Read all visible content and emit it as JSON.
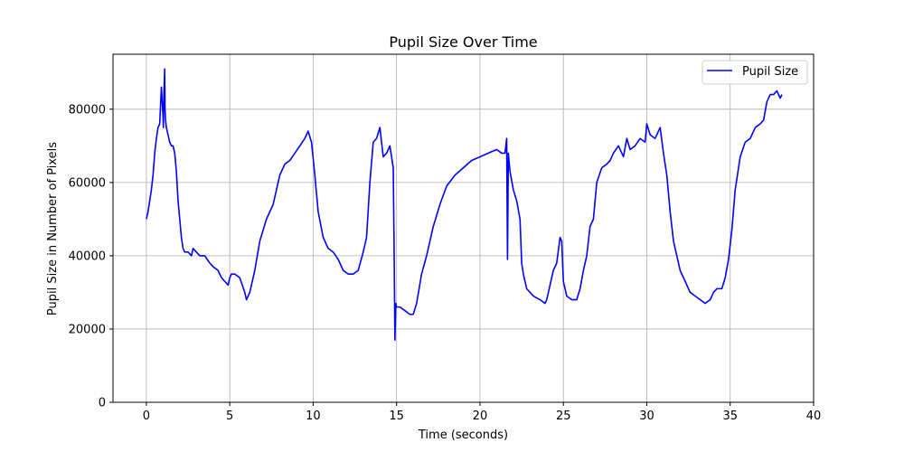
{
  "chart_data": {
    "type": "line",
    "title": "Pupil Size Over Time",
    "xlabel": "Time (seconds)",
    "ylabel": "Pupil Size in Number of Pixels",
    "xlim": [
      -2,
      40
    ],
    "ylim": [
      0,
      95000
    ],
    "xticks": [
      0,
      5,
      10,
      15,
      20,
      25,
      30,
      35,
      40
    ],
    "yticks": [
      0,
      20000,
      40000,
      60000,
      80000
    ],
    "grid": true,
    "legend": {
      "position": "top-right",
      "entries": [
        "Pupil Size"
      ]
    },
    "colors": {
      "series": "#0000ff",
      "grid": "#b0b0b0",
      "axes": "#000000"
    },
    "series": [
      {
        "name": "Pupil Size",
        "x": [
          0,
          0.1,
          0.2,
          0.3,
          0.4,
          0.5,
          0.6,
          0.7,
          0.8,
          0.9,
          1.0,
          1.02,
          1.05,
          1.1,
          1.12,
          1.15,
          1.2,
          1.3,
          1.4,
          1.5,
          1.6,
          1.7,
          1.8,
          1.9,
          2.0,
          2.1,
          2.2,
          2.3,
          2.5,
          2.7,
          2.8,
          3.0,
          3.2,
          3.5,
          3.8,
          4.0,
          4.3,
          4.5,
          4.7,
          4.9,
          5.0,
          5.1,
          5.3,
          5.6,
          5.9,
          6.0,
          6.2,
          6.5,
          6.8,
          7.2,
          7.6,
          8.0,
          8.3,
          8.6,
          8.9,
          9.2,
          9.5,
          9.7,
          9.9,
          10.1,
          10.3,
          10.6,
          10.9,
          11.2,
          11.5,
          11.8,
          12.1,
          12.4,
          12.7,
          13.0,
          13.2,
          13.4,
          13.6,
          13.8,
          14.0,
          14.2,
          14.4,
          14.6,
          14.8,
          14.85,
          14.9,
          14.95,
          15.0,
          15.2,
          15.5,
          15.8,
          16.0,
          16.2,
          16.5,
          16.8,
          17.2,
          17.6,
          18.0,
          18.5,
          19.0,
          19.5,
          20.0,
          20.5,
          21.0,
          21.3,
          21.5,
          21.6,
          21.65,
          21.7,
          21.8,
          22.0,
          22.2,
          22.4,
          22.5,
          22.6,
          22.8,
          23.2,
          23.6,
          23.9,
          24.0,
          24.2,
          24.4,
          24.6,
          24.8,
          24.9,
          25.0,
          25.2,
          25.5,
          25.8,
          26.0,
          26.2,
          26.4,
          26.5,
          26.6,
          26.8,
          27.0,
          27.3,
          27.6,
          27.8,
          28.0,
          28.3,
          28.6,
          28.8,
          29.0,
          29.3,
          29.6,
          29.9,
          30.0,
          30.2,
          30.5,
          30.8,
          31.0,
          31.2,
          31.4,
          31.6,
          31.8,
          32.0,
          32.3,
          32.6,
          32.9,
          33.2,
          33.5,
          33.8,
          34.0,
          34.2,
          34.5,
          34.7,
          34.9,
          35.1,
          35.3,
          35.6,
          35.9,
          36.2,
          36.5,
          36.8,
          37.0,
          37.2,
          37.4,
          37.6,
          37.8,
          38.0,
          38.1
        ],
        "values": [
          50000,
          52000,
          55000,
          58000,
          62000,
          68000,
          72000,
          75000,
          76000,
          86000,
          78000,
          75000,
          84000,
          91000,
          80000,
          77000,
          75000,
          73000,
          71000,
          70000,
          70000,
          68000,
          63000,
          55000,
          50000,
          45000,
          42000,
          41000,
          41000,
          40000,
          42000,
          41000,
          40000,
          40000,
          38000,
          37000,
          36000,
          34000,
          33000,
          32000,
          34000,
          35000,
          35000,
          34000,
          30000,
          28000,
          30000,
          36000,
          44000,
          50000,
          54000,
          62000,
          65000,
          66000,
          68000,
          70000,
          72000,
          74000,
          71000,
          62000,
          52000,
          45000,
          42000,
          41000,
          39000,
          36000,
          35000,
          35000,
          36000,
          41000,
          45000,
          60000,
          71000,
          72000,
          75000,
          67000,
          68000,
          70000,
          64000,
          43000,
          17000,
          27000,
          26000,
          26000,
          25000,
          24000,
          24000,
          27000,
          35000,
          40000,
          48000,
          54000,
          59000,
          62000,
          64000,
          66000,
          67000,
          68000,
          69000,
          68000,
          68000,
          72000,
          39000,
          68000,
          63000,
          58000,
          55000,
          50000,
          38000,
          35000,
          31000,
          29000,
          28000,
          27000,
          28000,
          32000,
          36000,
          38000,
          45000,
          44000,
          33000,
          29000,
          28000,
          28000,
          31000,
          36000,
          40000,
          44000,
          48000,
          50000,
          60000,
          64000,
          65000,
          66000,
          68000,
          70000,
          67000,
          72000,
          69000,
          70000,
          72000,
          71000,
          76000,
          73000,
          72000,
          75000,
          68000,
          62000,
          52000,
          44000,
          40000,
          36000,
          33000,
          30000,
          29000,
          28000,
          27000,
          28000,
          30000,
          31000,
          31000,
          34000,
          39000,
          47000,
          58000,
          67000,
          71000,
          72000,
          75000,
          76000,
          77000,
          82000,
          84000,
          84000,
          85000,
          83000,
          84000
        ]
      }
    ]
  }
}
